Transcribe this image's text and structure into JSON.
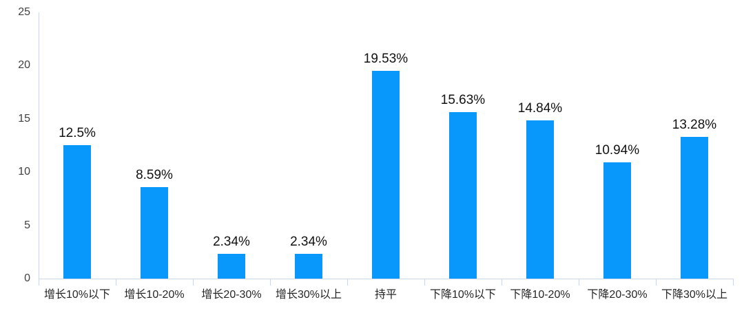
{
  "chart_data": {
    "type": "bar",
    "categories": [
      "增长10%以下",
      "增长10-20%",
      "增长20-30%",
      "增长30%以上",
      "持平",
      "下降10%以下",
      "下降10-20%",
      "下降20-30%",
      "下降30%以上"
    ],
    "values": [
      12.5,
      8.59,
      2.34,
      2.34,
      19.53,
      15.63,
      14.84,
      10.94,
      13.28
    ],
    "data_labels": [
      "12.5%",
      "8.59%",
      "2.34%",
      "2.34%",
      "19.53%",
      "15.63%",
      "14.84%",
      "10.94%",
      "13.28%"
    ],
    "title": "",
    "xlabel": "",
    "ylabel": "",
    "ylim": [
      0,
      25
    ],
    "yticks": [
      0,
      5,
      10,
      15,
      20,
      25
    ],
    "grid": false,
    "legend": "none",
    "bar_color": "#0898fb",
    "axis_line_color": "#ccd6eb",
    "data_label_color": "#111111",
    "tick_label_color": "#404040",
    "category_label_color": "#252525",
    "background_color": "#ffffff"
  }
}
